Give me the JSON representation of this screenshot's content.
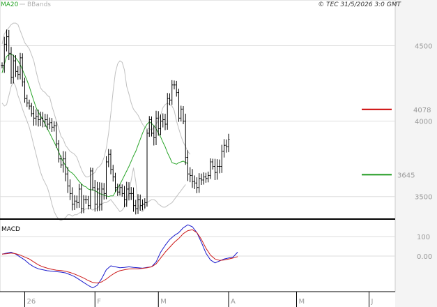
{
  "legend": {
    "ma_label": "MA20",
    "bbands_label": "BBands"
  },
  "copyright": "© TEC 31/5/2026 3:0 GMT",
  "colors": {
    "ma20": "#2aa52a",
    "bbands": "#c0c0c0",
    "price": "#000000",
    "resistance": "#cc0000",
    "support": "#1f9a1f",
    "macd_blue": "#1a1acc",
    "macd_red": "#cc1a1a",
    "grid": "#dddddd",
    "axis": "#9a9a9a",
    "right_panel_bg": "#f4f4f4"
  },
  "chart_data": [
    {
      "type": "ohlc",
      "panel": "price",
      "legend": [
        "MA20",
        "BBands"
      ],
      "y_tick_labels": [
        "4500",
        "4000",
        "3500"
      ],
      "y_ticks": [
        4500,
        4000,
        3500
      ],
      "ylim": [
        3360,
        4720
      ],
      "x_tick_labels": [
        "26",
        "F",
        "M",
        "A",
        "M",
        "J"
      ],
      "x_tick_index": [
        10,
        41,
        69,
        100,
        130,
        162
      ],
      "resistance": {
        "label": "4078",
        "value": 4078
      },
      "support": {
        "label": "3645",
        "value": 3645
      },
      "close": [
        4370,
        4510,
        4560,
        4450,
        4290,
        4400,
        4330,
        4310,
        4420,
        4260,
        4150,
        4120,
        4100,
        4050,
        4020,
        4030,
        4010,
        4020,
        4000,
        4010,
        3980,
        3990,
        3960,
        3970,
        3850,
        3750,
        3710,
        3750,
        3650,
        3570,
        3520,
        3450,
        3470,
        3460,
        3550,
        3420,
        3480,
        3480,
        3440,
        3670,
        3560,
        3450,
        3550,
        3450,
        3550,
        3520,
        3730,
        3780,
        3680,
        3630,
        3560,
        3530,
        3560,
        3520,
        3480,
        3550,
        3520,
        3520,
        3440,
        3420,
        3480,
        3440,
        3450,
        3460,
        3920,
        4010,
        3920,
        3890,
        4020,
        3950,
        4000,
        4010,
        3980,
        4150,
        4140,
        4240,
        4240,
        4190,
        4020,
        4080,
        4000,
        3760,
        3650,
        3640,
        3600,
        3590,
        3560,
        3620,
        3610,
        3630,
        3620,
        3640,
        3730,
        3700,
        3660,
        3700,
        3700,
        3800,
        3840,
        3830,
        3880
      ],
      "sma20": [
        4320,
        4380,
        4430,
        4440,
        4445,
        4435,
        4420,
        4400,
        4375,
        4340,
        4305,
        4270,
        4230,
        4180,
        4135,
        4090,
        4060,
        4035,
        4010,
        3980,
        3950,
        3920,
        3890,
        3860,
        3830,
        3795,
        3760,
        3730,
        3705,
        3680,
        3665,
        3655,
        3640,
        3620,
        3600,
        3585,
        3570,
        3565,
        3550,
        3545,
        3545,
        3540,
        3530,
        3520,
        3515,
        3510,
        3505,
        3500,
        3505,
        3505,
        3530,
        3555,
        3580,
        3610,
        3640,
        3670,
        3700,
        3735,
        3770,
        3800,
        3840,
        3880,
        3920,
        3955,
        3980,
        3995,
        3985,
        3970,
        3950,
        3920,
        3895,
        3860,
        3830,
        3790,
        3760,
        3725,
        3720,
        3715,
        3725,
        3730,
        3735,
        3725,
        3720
      ],
      "bb_upper": [
        4510,
        4580,
        4600,
        4620,
        4640,
        4650,
        4650,
        4640,
        4600,
        4560,
        4520,
        4500,
        4480,
        4440,
        4400,
        4330,
        4270,
        4220,
        4200,
        4190,
        4170,
        4160,
        4100,
        4050,
        4000,
        3950,
        3900,
        3880,
        3840,
        3820,
        3800,
        3790,
        3780,
        3760,
        3720,
        3680,
        3650,
        3630,
        3630,
        3640,
        3650,
        3660,
        3690,
        3700,
        3720,
        3760,
        3820,
        3920,
        4050,
        4200,
        4320,
        4380,
        4400,
        4390,
        4340,
        4230,
        4180,
        4120,
        4080,
        4060,
        4040,
        4010,
        3980,
        3960,
        3950,
        3950,
        3940,
        3960,
        3980,
        4010,
        4040,
        4090,
        4110,
        4120,
        4110,
        4100,
        4070,
        4000,
        3950,
        3900,
        3860,
        3830,
        3800,
        3780
      ],
      "bb_lower": [
        4120,
        4100,
        4110,
        4170,
        4230,
        4260,
        4230,
        4170,
        4130,
        4080,
        4040,
        4000,
        3960,
        3900,
        3840,
        3780,
        3720,
        3660,
        3620,
        3590,
        3560,
        3510,
        3450,
        3400,
        3370,
        3350,
        3340,
        3350,
        3360,
        3380,
        3380,
        3370,
        3380,
        3380,
        3390,
        3400,
        3410,
        3420,
        3420,
        3420,
        3410,
        3420,
        3420,
        3440,
        3450,
        3460,
        3460,
        3470,
        3480,
        3460,
        3440,
        3420,
        3400,
        3410,
        3430,
        3460,
        3530,
        3610,
        3690,
        3600,
        3450,
        3410,
        3400,
        3420,
        3460,
        3470,
        3480,
        3480,
        3470,
        3450,
        3440,
        3430,
        3430,
        3440,
        3450,
        3460,
        3480,
        3500,
        3520,
        3540,
        3560,
        3580
      ]
    },
    {
      "type": "line",
      "panel": "macd",
      "title": "MACD",
      "y_tick_labels": [
        "100",
        "0.00"
      ],
      "y_ticks": [
        100,
        0
      ],
      "ylim": [
        -175,
        175
      ],
      "series": [
        {
          "values": [
            10,
            15,
            20,
            10,
            -5,
            -20,
            -40,
            -55,
            -65,
            -70,
            -75,
            -78,
            -80,
            -82,
            -86,
            -95,
            -105,
            -120,
            -135,
            -150,
            -163,
            -150,
            -115,
            -70,
            -50,
            -55,
            -60,
            -58,
            -55,
            -58,
            -60,
            -62,
            -58,
            -55,
            -30,
            20,
            55,
            85,
            105,
            120,
            145,
            160,
            150,
            120,
            70,
            15,
            -20,
            -35,
            -25,
            -15,
            -10,
            -5,
            20
          ]
        },
        {
          "values": [
            10,
            12,
            15,
            12,
            5,
            -5,
            -15,
            -30,
            -45,
            -55,
            -62,
            -68,
            -72,
            -74,
            -78,
            -84,
            -92,
            -102,
            -112,
            -125,
            -135,
            -138,
            -132,
            -118,
            -100,
            -85,
            -75,
            -70,
            -66,
            -65,
            -65,
            -63,
            -60,
            -55,
            -40,
            -10,
            20,
            45,
            70,
            90,
            115,
            130,
            135,
            120,
            85,
            40,
            5,
            -15,
            -22,
            -20,
            -15,
            -10,
            -3
          ]
        }
      ]
    }
  ]
}
